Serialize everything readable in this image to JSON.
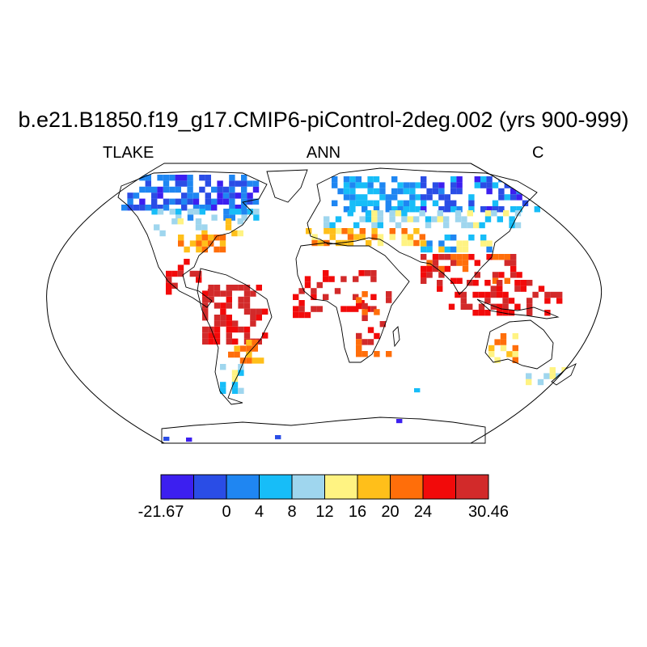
{
  "title": "b.e21.B1850.f19_g17.CMIP6-piControl-2deg.002 (yrs 900-999)",
  "subtitle_left": "TLAKE",
  "subtitle_center": "ANN",
  "subtitle_right": "C",
  "colorbar": {
    "colors": [
      "#3c1ff0",
      "#2a4de6",
      "#1f86f2",
      "#17bdf8",
      "#9fd6ee",
      "#fff382",
      "#ffbf1a",
      "#ff6e0a",
      "#f20a0a",
      "#d22a2a"
    ],
    "labels": [
      {
        "text": "-21.67",
        "boundary": 0
      },
      {
        "text": "0",
        "boundary": 2
      },
      {
        "text": "4",
        "boundary": 3
      },
      {
        "text": "8",
        "boundary": 4
      },
      {
        "text": "12",
        "boundary": 5
      },
      {
        "text": "16",
        "boundary": 6
      },
      {
        "text": "20",
        "boundary": 7
      },
      {
        "text": "24",
        "boundary": 8
      },
      {
        "text": "30.46",
        "boundary": 10
      }
    ]
  }
}
